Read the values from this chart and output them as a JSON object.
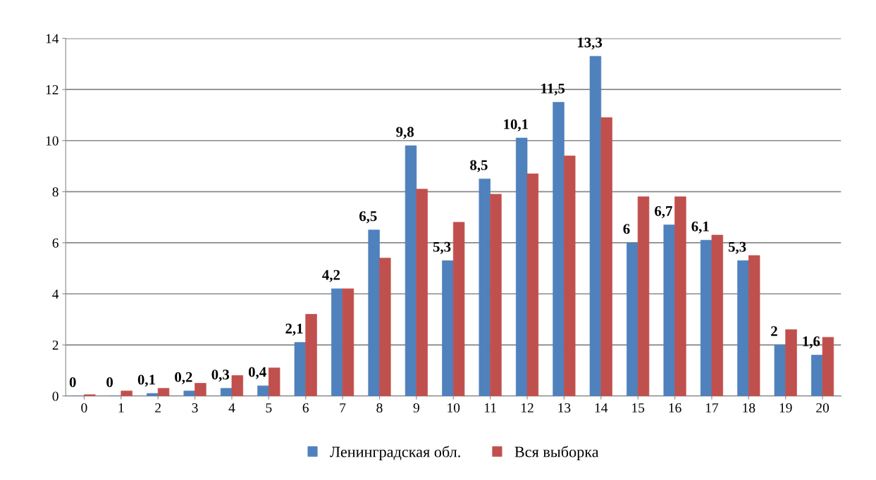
{
  "chart_data": {
    "type": "bar",
    "categories": [
      "0",
      "1",
      "2",
      "3",
      "4",
      "5",
      "6",
      "7",
      "8",
      "9",
      "10",
      "11",
      "12",
      "13",
      "14",
      "15",
      "16",
      "17",
      "18",
      "19",
      "20"
    ],
    "series": [
      {
        "name": "Ленинградская обл.",
        "color": "#4f81bd",
        "values": [
          0,
          0,
          0.1,
          0.2,
          0.3,
          0.4,
          2.1,
          4.2,
          6.5,
          9.8,
          5.3,
          8.5,
          10.1,
          11.5,
          13.3,
          6,
          6.7,
          6.1,
          5.3,
          2,
          1.6
        ],
        "value_labels": [
          "0",
          "0",
          "0,1",
          "0,2",
          "0,3",
          "0,4",
          "2,1",
          "4,2",
          "6,5",
          "9,8",
          "5,3",
          "8,5",
          "10,1",
          "11,5",
          "13,3",
          "6",
          "6,7",
          "6,1",
          "5,3",
          "2",
          "1,6"
        ]
      },
      {
        "name": "Вся выборка",
        "color": "#c0504d",
        "values": [
          0.05,
          0.2,
          0.3,
          0.5,
          0.8,
          1.1,
          3.2,
          4.2,
          5.4,
          8.1,
          6.8,
          7.9,
          8.7,
          9.4,
          10.9,
          7.8,
          7.8,
          6.3,
          5.5,
          2.6,
          2.3
        ]
      }
    ],
    "ylim": [
      0,
      14
    ],
    "yticks": [
      0,
      2,
      4,
      6,
      8,
      10,
      12,
      14
    ],
    "grid": "y",
    "legend": "bottom"
  }
}
